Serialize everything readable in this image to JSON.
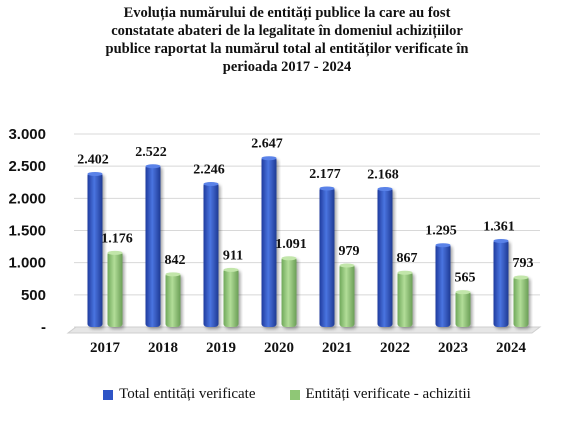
{
  "chart_data": {
    "type": "bar",
    "title_lines": [
      "Evoluția numărului de entități publice la care au fost",
      "constatate abateri de la legalitate în domeniul achizițiilor",
      "publice raportat la numărul total al entităților verificate în",
      "perioada 2017 - 2024"
    ],
    "categories": [
      "2017",
      "2018",
      "2019",
      "2020",
      "2021",
      "2022",
      "2023",
      "2024"
    ],
    "series": [
      {
        "name": "Total entități verificate",
        "values": [
          2402,
          2522,
          2246,
          2647,
          2177,
          2168,
          1295,
          1361
        ],
        "labels": [
          "2.402",
          "2.522",
          "2.246",
          "2.647",
          "2.177",
          "2.168",
          "1.295",
          "1.361"
        ],
        "color": "#2E54C6"
      },
      {
        "name": "Entități verificate - achizitii",
        "values": [
          1176,
          842,
          911,
          1091,
          979,
          867,
          565,
          793
        ],
        "labels": [
          "1.176",
          "842",
          "911",
          "1.091",
          "979",
          "867",
          "565",
          "793"
        ],
        "color": "#8FC776"
      }
    ],
    "ylim": [
      0,
      3000
    ],
    "yticks": [
      0,
      500,
      1000,
      1500,
      2000,
      2500,
      3000
    ],
    "ytick_labels": [
      "-",
      "500",
      "1.000",
      "1.500",
      "2.000",
      "2.500",
      "3.000"
    ],
    "grid": true,
    "legend_position": "bottom",
    "xlabel": "",
    "ylabel": ""
  }
}
